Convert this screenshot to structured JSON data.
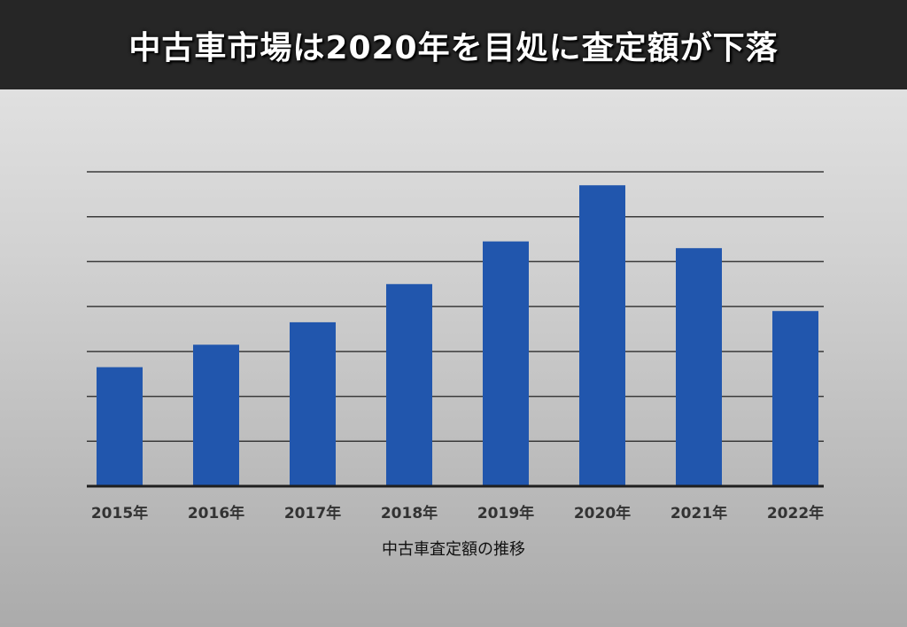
{
  "header": {
    "title": "中古車市場は2020年を目処に査定額が下落"
  },
  "chart_data": {
    "type": "bar",
    "categories": [
      "2015年",
      "2016年",
      "2017年",
      "2018年",
      "2019年",
      "2020年",
      "2021年",
      "2022年"
    ],
    "values": [
      2.65,
      3.15,
      3.65,
      4.5,
      5.45,
      6.7,
      5.3,
      3.9
    ],
    "ylim": [
      0,
      7
    ],
    "grid": true,
    "bar_color": "#2156ad",
    "grid_color": "#3a3a3a",
    "xlabel": "中古車査定額の推移"
  }
}
